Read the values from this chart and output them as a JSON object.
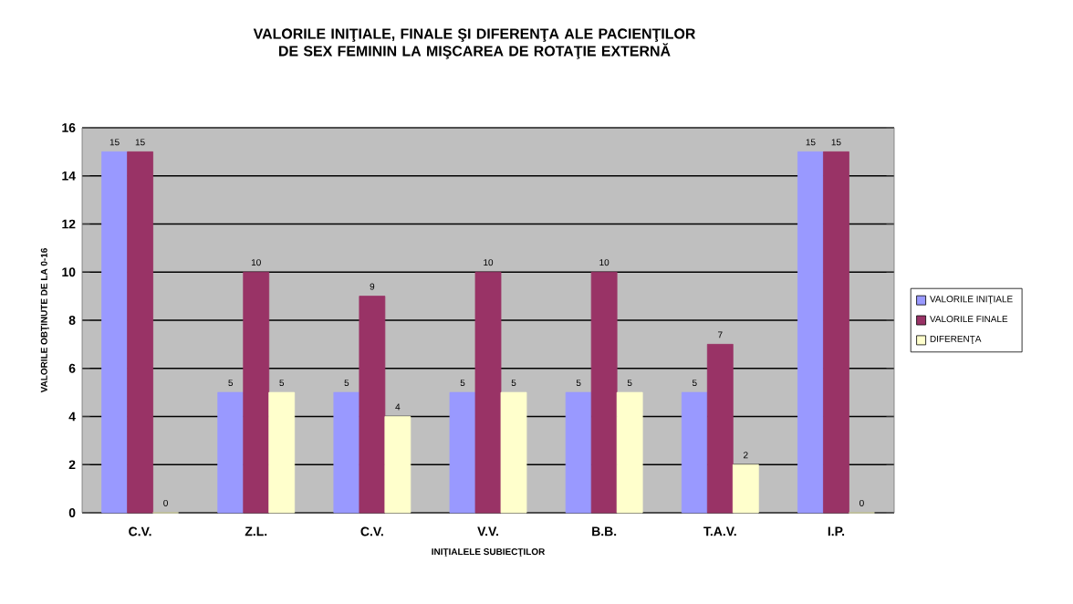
{
  "chart_data": {
    "type": "bar",
    "title": "VALORILE INIŢIALE, FINALE ŞI DIFERENŢA ALE PACIENŢILOR DE SEX FEMININ LA MIŞCAREA DE ROTAŢIE EXTERNĂ",
    "xlabel": "INIŢIALELE SUBIECŢILOR",
    "ylabel": "VALORILE OBŢINUTE DE LA 0-16",
    "categories": [
      "C.V.",
      "Z.L.",
      "C.V.",
      "V.V.",
      "B.B.",
      "T.A.V.",
      "I.P."
    ],
    "series": [
      {
        "name": "VALORILE INIŢIALE",
        "color": "#9999ff",
        "values": [
          15,
          5,
          5,
          5,
          5,
          5,
          15
        ]
      },
      {
        "name": "VALORILE FINALE",
        "color": "#993366",
        "values": [
          15,
          10,
          9,
          10,
          10,
          7,
          15
        ]
      },
      {
        "name": "DIFERENŢA",
        "color": "#ffffcc",
        "values": [
          0,
          5,
          4,
          5,
          5,
          2,
          0
        ]
      }
    ],
    "ylim": [
      0,
      16
    ],
    "yticks": [
      0,
      2,
      4,
      6,
      8,
      10,
      12,
      14,
      16
    ],
    "grid": "y",
    "legend": "right",
    "data_labels": true
  }
}
